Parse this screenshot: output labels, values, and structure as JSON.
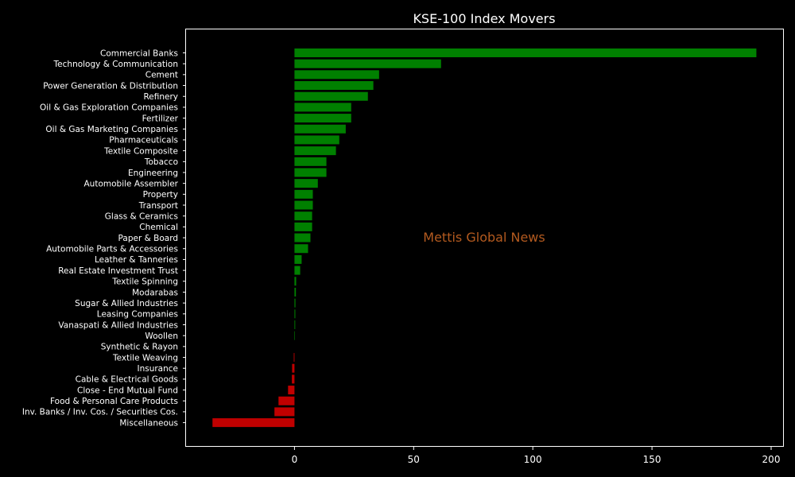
{
  "chart_data": {
    "type": "bar",
    "orientation": "horizontal",
    "title": "KSE-100 Index Movers",
    "xlabel": "",
    "ylabel": "",
    "xlim": [
      -45.5,
      205
    ],
    "x_ticks": [
      0,
      50,
      100,
      150,
      200
    ],
    "grid": false,
    "categories": [
      "Commercial Banks",
      "Technology & Communication",
      "Cement",
      "Power Generation & Distribution",
      "Refinery",
      "Oil & Gas Exploration Companies",
      "Fertilizer",
      "Oil & Gas Marketing Companies",
      "Pharmaceuticals",
      "Textile Composite",
      "Tobacco",
      "Engineering",
      "Automobile Assembler",
      "Property",
      "Transport",
      "Glass & Ceramics",
      "Chemical",
      "Paper & Board",
      "Automobile Parts & Accessories",
      "Leather & Tanneries",
      "Real Estate Investment Trust",
      "Textile Spinning",
      "Modarabas",
      "Sugar & Allied Industries",
      "Leasing Companies",
      "Vanaspati & Allied Industries",
      "Woollen",
      "Synthetic & Rayon",
      "Textile Weaving",
      "Insurance",
      "Cable & Electrical Goods",
      "Close - End Mutual Fund",
      "Food & Personal Care Products",
      "Inv. Banks / Inv. Cos. / Securities Cos.",
      "Miscellaneous"
    ],
    "values": [
      193.8,
      61.5,
      35.5,
      33.1,
      30.8,
      23.8,
      23.8,
      21.5,
      18.8,
      17.4,
      13.4,
      13.4,
      9.8,
      7.7,
      7.7,
      7.4,
      7.4,
      6.7,
      5.7,
      3.0,
      2.4,
      0.7,
      0.6,
      0.4,
      0.35,
      0.3,
      0.2,
      0.0,
      -0.3,
      -1.0,
      -1.1,
      -2.7,
      -6.7,
      -8.4,
      -34.4
    ],
    "colors": {
      "positive": "#008000",
      "negative": "#c00000"
    }
  },
  "watermark": {
    "text": "Mettis Global News",
    "color": "#b35a1f"
  },
  "theme": {
    "background": "#000000",
    "axis_color": "#ffffff",
    "text_color": "#ffffff"
  }
}
